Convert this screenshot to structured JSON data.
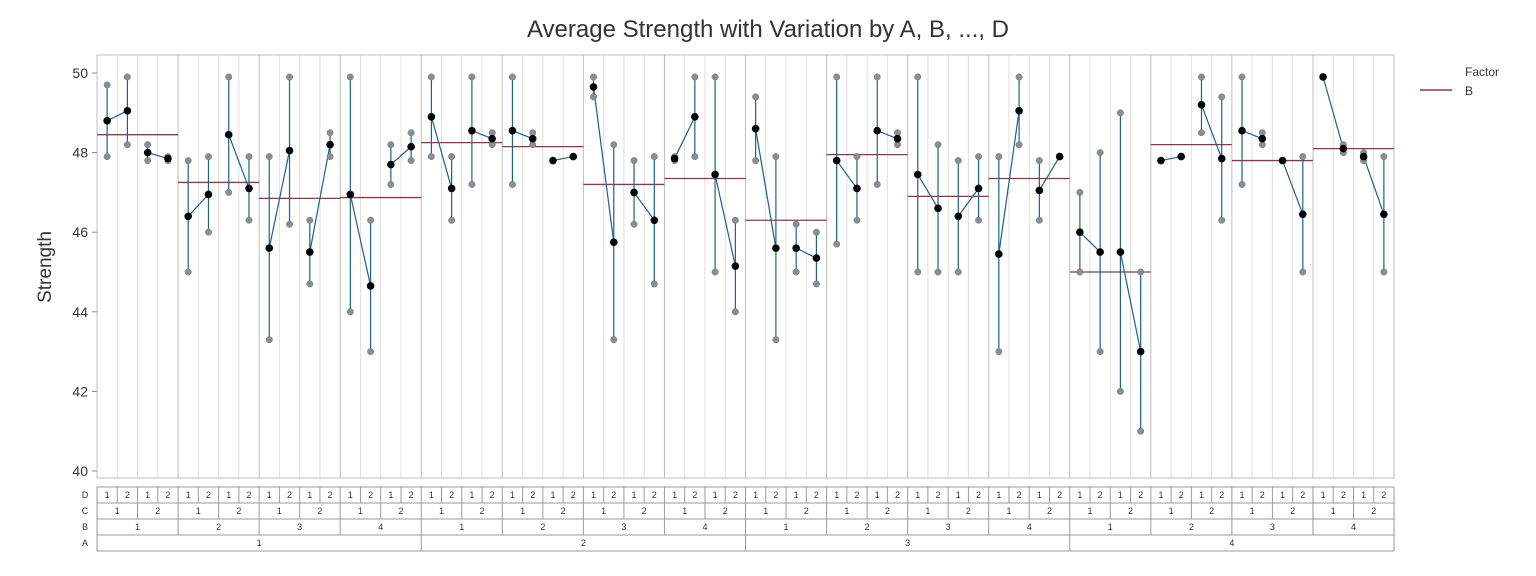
{
  "chart_data": {
    "type": "variability",
    "title": "Average Strength with Variation by A, B, ..., D",
    "ylabel": "Strength",
    "ylim": [
      40,
      50
    ],
    "yticks": [
      40,
      42,
      44,
      46,
      48,
      50
    ],
    "legend": {
      "title": "Factor",
      "entries": [
        "B"
      ],
      "position": "top-right"
    },
    "factor_rows": [
      "D",
      "C",
      "B",
      "A"
    ],
    "a_levels": [
      "1",
      "2",
      "3",
      "4"
    ],
    "b_levels": [
      "1",
      "2",
      "3",
      "4"
    ],
    "c_levels": [
      "1",
      "2"
    ],
    "d_levels": [
      "1",
      "2"
    ],
    "colors": {
      "range": "#1f5f8b",
      "connect": "#1f5f8b",
      "mean_point": "#000000",
      "obs_point": "#8a8f96",
      "b_mean": "#8b3a4a",
      "grid": "#d9d9d9"
    },
    "b_means": [
      48.45,
      47.25,
      46.85,
      46.87,
      48.25,
      48.15,
      47.2,
      47.35,
      46.3,
      47.95,
      46.9,
      47.35,
      45.0,
      48.2,
      47.8,
      48.1
    ],
    "cells": [
      {
        "obs": [
          49.7,
          47.9
        ],
        "mean": 48.8
      },
      {
        "obs": [
          49.9,
          48.2
        ],
        "mean": 49.05
      },
      {
        "obs": [
          48.2,
          47.8
        ],
        "mean": 48.0
      },
      {
        "obs": [
          47.9,
          47.8
        ],
        "mean": 47.85
      },
      {
        "obs": [
          47.8,
          45.0
        ],
        "mean": 46.4
      },
      {
        "obs": [
          47.9,
          46.0
        ],
        "mean": 46.95
      },
      {
        "obs": [
          49.9,
          47.0
        ],
        "mean": 48.45
      },
      {
        "obs": [
          47.9,
          46.3
        ],
        "mean": 47.1
      },
      {
        "obs": [
          47.9,
          43.3
        ],
        "mean": 45.6
      },
      {
        "obs": [
          49.9,
          46.2
        ],
        "mean": 48.05
      },
      {
        "obs": [
          46.3,
          44.7
        ],
        "mean": 45.5
      },
      {
        "obs": [
          48.5,
          47.9
        ],
        "mean": 48.2
      },
      {
        "obs": [
          49.9,
          44.0
        ],
        "mean": 46.95
      },
      {
        "obs": [
          46.3,
          43.0
        ],
        "mean": 44.65
      },
      {
        "obs": [
          48.2,
          47.2
        ],
        "mean": 47.7
      },
      {
        "obs": [
          48.5,
          47.8
        ],
        "mean": 48.15
      },
      {
        "obs": [
          49.9,
          47.9
        ],
        "mean": 48.9
      },
      {
        "obs": [
          47.9,
          46.3
        ],
        "mean": 47.1
      },
      {
        "obs": [
          49.9,
          47.2
        ],
        "mean": 48.55
      },
      {
        "obs": [
          48.5,
          48.2
        ],
        "mean": 48.35
      },
      {
        "obs": [
          49.9,
          47.2
        ],
        "mean": 48.55
      },
      {
        "obs": [
          48.5,
          48.2
        ],
        "mean": 48.35
      },
      {
        "obs": [
          47.8,
          47.8
        ],
        "mean": 47.8
      },
      {
        "obs": [
          47.9,
          47.9
        ],
        "mean": 47.9
      },
      {
        "obs": [
          49.9,
          49.4
        ],
        "mean": 49.65
      },
      {
        "obs": [
          48.2,
          43.3
        ],
        "mean": 45.75
      },
      {
        "obs": [
          47.8,
          46.2
        ],
        "mean": 47.0
      },
      {
        "obs": [
          47.9,
          44.7
        ],
        "mean": 46.3
      },
      {
        "obs": [
          47.9,
          47.8
        ],
        "mean": 47.85
      },
      {
        "obs": [
          49.9,
          47.9
        ],
        "mean": 48.9
      },
      {
        "obs": [
          49.9,
          45.0
        ],
        "mean": 47.45
      },
      {
        "obs": [
          46.3,
          44.0
        ],
        "mean": 45.15
      },
      {
        "obs": [
          49.4,
          47.8
        ],
        "mean": 48.6
      },
      {
        "obs": [
          47.9,
          43.3
        ],
        "mean": 45.6
      },
      {
        "obs": [
          46.2,
          45.0
        ],
        "mean": 45.6
      },
      {
        "obs": [
          46.0,
          44.7
        ],
        "mean": 45.35
      },
      {
        "obs": [
          49.9,
          45.7
        ],
        "mean": 47.8
      },
      {
        "obs": [
          47.9,
          46.3
        ],
        "mean": 47.1
      },
      {
        "obs": [
          49.9,
          47.2
        ],
        "mean": 48.55
      },
      {
        "obs": [
          48.5,
          48.2
        ],
        "mean": 48.35
      },
      {
        "obs": [
          49.9,
          45.0
        ],
        "mean": 47.45
      },
      {
        "obs": [
          48.2,
          45.0
        ],
        "mean": 46.6
      },
      {
        "obs": [
          47.8,
          45.0
        ],
        "mean": 46.4
      },
      {
        "obs": [
          47.9,
          46.3
        ],
        "mean": 47.1
      },
      {
        "obs": [
          47.9,
          43.0
        ],
        "mean": 45.45
      },
      {
        "obs": [
          49.9,
          48.2
        ],
        "mean": 49.05
      },
      {
        "obs": [
          47.8,
          46.3
        ],
        "mean": 47.05
      },
      {
        "obs": [
          47.9,
          47.9
        ],
        "mean": 47.9
      },
      {
        "obs": [
          47.0,
          45.0
        ],
        "mean": 46.0
      },
      {
        "obs": [
          48.0,
          43.0
        ],
        "mean": 45.5
      },
      {
        "obs": [
          49.0,
          42.0
        ],
        "mean": 45.5
      },
      {
        "obs": [
          45.0,
          41.0
        ],
        "mean": 43.0
      },
      {
        "obs": [
          47.8,
          47.8
        ],
        "mean": 47.8
      },
      {
        "obs": [
          47.9,
          47.9
        ],
        "mean": 47.9
      },
      {
        "obs": [
          49.9,
          48.5
        ],
        "mean": 49.2
      },
      {
        "obs": [
          49.4,
          46.3
        ],
        "mean": 47.85
      },
      {
        "obs": [
          49.9,
          47.2
        ],
        "mean": 48.55
      },
      {
        "obs": [
          48.5,
          48.2
        ],
        "mean": 48.35
      },
      {
        "obs": [
          47.8,
          47.8
        ],
        "mean": 47.8
      },
      {
        "obs": [
          47.9,
          45.0
        ],
        "mean": 46.45
      },
      {
        "obs": [
          49.9,
          49.9
        ],
        "mean": 49.9
      },
      {
        "obs": [
          48.2,
          48.0
        ],
        "mean": 48.1
      },
      {
        "obs": [
          48.0,
          47.8
        ],
        "mean": 47.9
      },
      {
        "obs": [
          47.9,
          45.0
        ],
        "mean": 46.45
      }
    ]
  }
}
